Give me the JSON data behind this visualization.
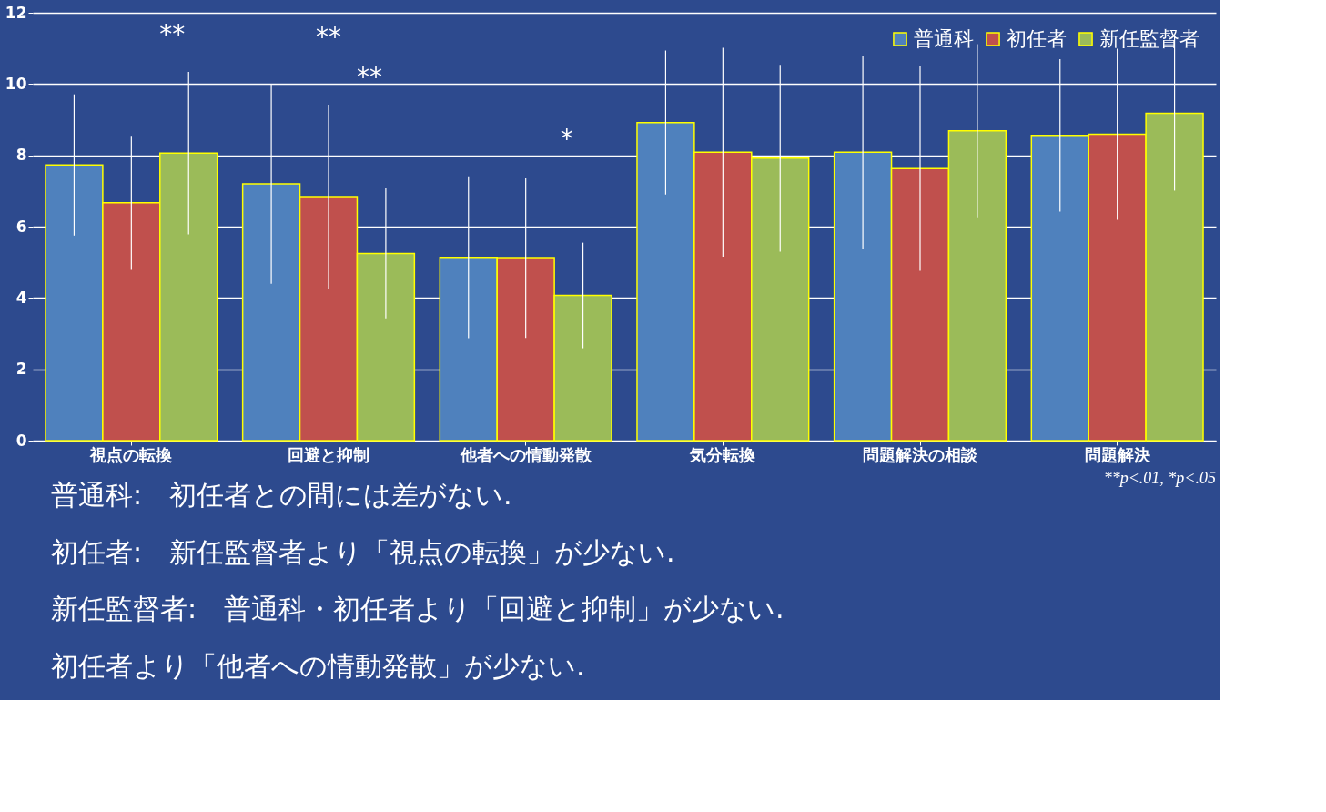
{
  "chart_data": {
    "type": "bar",
    "categories": [
      "視点の転換",
      "回避と抑制",
      "他者への情動発散",
      "気分転換",
      "問題解決の相談",
      "問題解決"
    ],
    "series": [
      {
        "name": "普通科",
        "color": "#4f81bd",
        "values": [
          7.73,
          7.2,
          5.14,
          8.92,
          8.09,
          8.56
        ],
        "errors": [
          1.98,
          2.8,
          2.27,
          2.02,
          2.71,
          2.14
        ]
      },
      {
        "name": "初任者",
        "color": "#c0504d",
        "values": [
          6.67,
          6.84,
          5.13,
          8.09,
          7.63,
          8.59
        ],
        "errors": [
          1.88,
          2.58,
          2.25,
          2.93,
          2.87,
          2.4
        ]
      },
      {
        "name": "新任監督者",
        "color": "#9bbb59",
        "values": [
          8.06,
          5.25,
          4.07,
          7.92,
          8.69,
          9.18
        ],
        "errors": [
          2.28,
          1.82,
          1.48,
          2.62,
          2.43,
          2.17
        ]
      }
    ],
    "ylim": [
      0,
      12
    ],
    "yticks": [
      0,
      2,
      4,
      6,
      8,
      10,
      12
    ],
    "grid": "y",
    "legend": "top right",
    "annotations": [
      "**",
      "**",
      "**",
      "*",
      "**p<.01, *p<.05",
      "普通科:　初任者との間には差がない.",
      "初任者:　新任監督者より「視点の転換」が少ない.",
      "新任監督者:　普通科・初任者より「回避と抑制」が少ない.",
      "初任者より「他者への情動発散」が少ない."
    ]
  }
}
